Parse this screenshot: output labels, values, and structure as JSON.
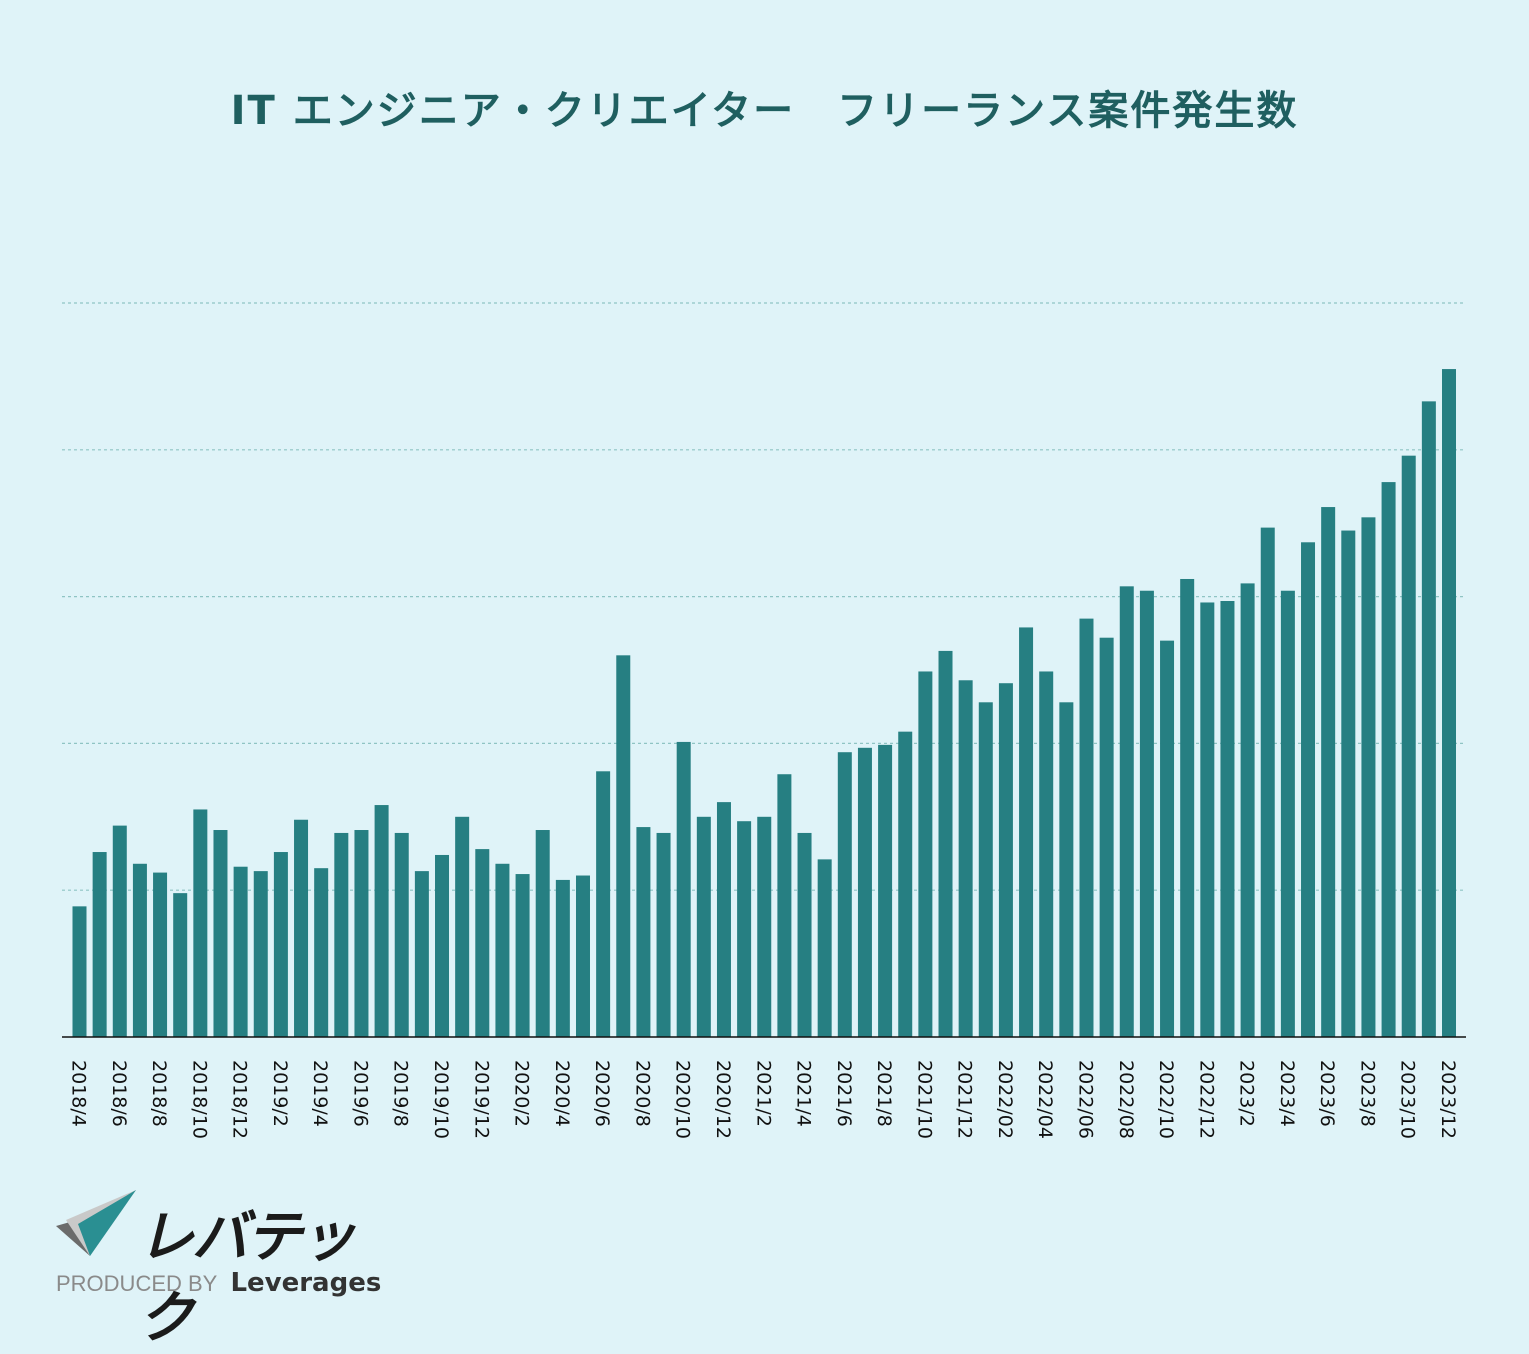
{
  "chart_data": {
    "type": "bar",
    "title": "IT エンジニア・クリエイター　フリーランス案件発生数",
    "xlabel": "",
    "ylabel": "",
    "ylim": [
      0,
      500
    ],
    "yticks": [
      0,
      100,
      200,
      300,
      400,
      500
    ],
    "show_y_tick_labels": false,
    "grid": true,
    "categories": [
      "2018/4",
      "",
      "2018/6",
      "",
      "2018/8",
      "",
      "2018/10",
      "",
      "2018/12",
      "",
      "2019/2",
      "",
      "2019/4",
      "",
      "2019/6",
      "",
      "2019/8",
      "",
      "2019/10",
      "",
      "2019/12",
      "",
      "2020/2",
      "",
      "2020/4",
      "",
      "2020/6",
      "",
      "2020/8",
      "",
      "2020/10",
      "",
      "2020/12",
      "",
      "2021/2",
      "",
      "2021/4",
      "",
      "2021/6",
      "",
      "2021/8",
      "",
      "2021/10",
      "",
      "2021/12",
      "",
      "2022/02",
      "",
      "2022/04",
      "",
      "2022/06",
      "",
      "2022/08",
      "",
      "2022/10",
      "",
      "2022/12",
      "",
      "2023/2",
      "",
      "2023/4",
      "",
      "2023/6",
      "",
      "2023/8",
      "",
      "2023/10",
      "",
      "2023/12"
    ],
    "values": [
      89,
      126,
      144,
      118,
      112,
      98,
      155,
      141,
      116,
      113,
      126,
      148,
      115,
      139,
      141,
      158,
      139,
      113,
      124,
      150,
      128,
      118,
      111,
      141,
      107,
      110,
      181,
      260,
      143,
      139,
      201,
      150,
      160,
      147,
      150,
      179,
      139,
      121,
      194,
      197,
      199,
      208,
      249,
      263,
      243,
      228,
      241,
      279,
      249,
      228,
      285,
      272,
      307,
      304,
      270,
      312,
      296,
      297,
      309,
      347,
      304,
      337,
      361,
      345,
      354,
      378,
      396,
      433,
      455
    ],
    "bar_color": "#267f82",
    "grid_color": "#8fc4c4",
    "axis_color": "#111111",
    "tick_label_color": "#111111"
  },
  "logo": {
    "text": "レバテック",
    "produced_by": "PRODUCED BY",
    "brand": "Leverages"
  },
  "colors": {
    "background": "#dff3f8",
    "title": "#1f5f60",
    "logo_teal": "#2a8f92"
  }
}
